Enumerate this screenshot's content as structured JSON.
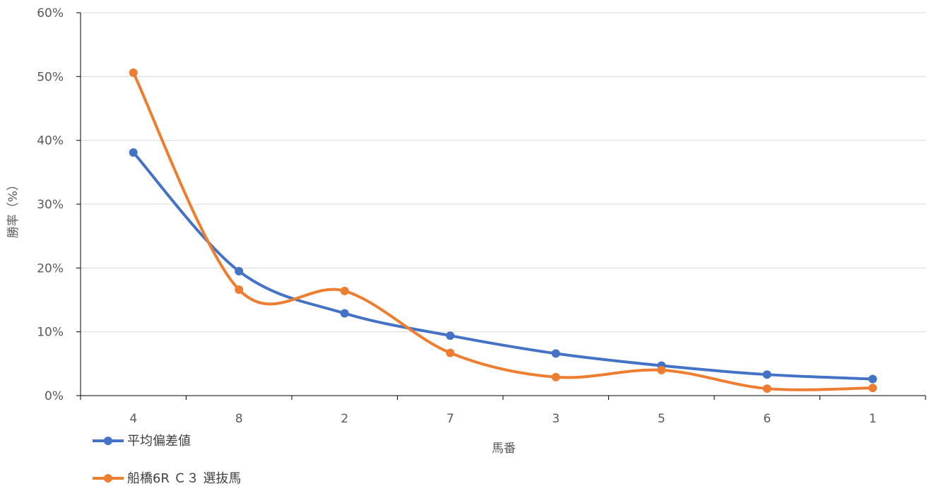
{
  "chart_data": {
    "type": "line",
    "title": "",
    "xlabel": "馬番",
    "ylabel": "勝率（%）",
    "categories": [
      "4",
      "8",
      "2",
      "7",
      "3",
      "5",
      "6",
      "1"
    ],
    "ylim": [
      0,
      60
    ],
    "yticks": [
      0,
      10,
      20,
      30,
      40,
      50,
      60
    ],
    "ytick_labels": [
      "0%",
      "10%",
      "20%",
      "30%",
      "40%",
      "50%",
      "60%"
    ],
    "grid": true,
    "smooth": true,
    "legend_position": "bottom-left",
    "series": [
      {
        "name": "平均偏差値",
        "color": "#4472C4",
        "values": [
          38.1,
          19.5,
          12.9,
          9.4,
          6.6,
          4.7,
          3.3,
          2.6
        ]
      },
      {
        "name": "船橋6R Ｃ３ 選抜馬",
        "color": "#ED7D31",
        "values": [
          50.6,
          16.6,
          16.4,
          6.7,
          2.9,
          4.0,
          1.1,
          1.2
        ]
      }
    ]
  }
}
